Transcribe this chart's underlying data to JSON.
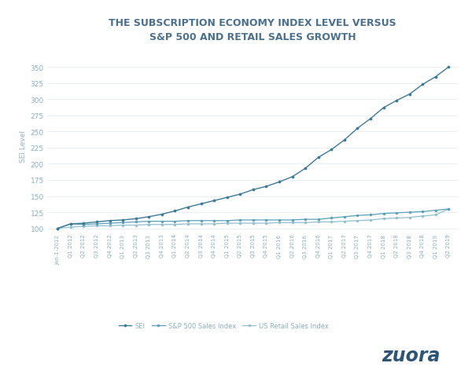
{
  "title": "THE SUBSCRIPTION ECONOMY INDEX LEVEL VERSUS\nS&P 500 AND RETAIL SALES GROWTH",
  "ylabel": "SEI Level",
  "background_color": "#ffffff",
  "title_color": "#4a7090",
  "axis_label_color": "#8ab0c0",
  "tick_color": "#8ab0c0",
  "grid_color": "#dde8ee",
  "ylim": [
    95,
    362
  ],
  "yticks": [
    100,
    125,
    150,
    175,
    200,
    225,
    250,
    275,
    300,
    325,
    350
  ],
  "line_color_sei": "#3d7a96",
  "line_color_sp500": "#5a9fb8",
  "line_color_retail": "#90bfd0",
  "zuora_color": "#2e5575",
  "x_labels": [
    "Jan-1-2012",
    "Q1 2012",
    "Q2 2012",
    "Q3 2012",
    "Q4 2012",
    "Q1 2013",
    "Q2 2013",
    "Q3 2013",
    "Q4 2013",
    "Q1 2014",
    "Q2 2014",
    "Q3 2014",
    "Q4 2014",
    "Q1 2015",
    "Q2 2015",
    "Q3 2015",
    "Q4 2015",
    "Q1 2016",
    "Q2 2016",
    "Q3 2016",
    "Q4 2016",
    "Q1 2017",
    "Q2 2017",
    "Q3 2017",
    "Q4 2017",
    "Q1 2018",
    "Q2 2018",
    "Q3 2018",
    "Q4 2018",
    "Q1 2019",
    "Q2 2019"
  ],
  "sei": [
    100,
    107,
    108,
    110,
    112,
    113,
    115,
    118,
    122,
    127,
    133,
    138,
    143,
    148,
    153,
    160,
    165,
    172,
    180,
    193,
    210,
    222,
    237,
    255,
    270,
    287,
    298,
    308,
    323,
    335,
    350
  ],
  "sp500": [
    100,
    107,
    106,
    107,
    108,
    109,
    110,
    111,
    111,
    111,
    112,
    112,
    112,
    112,
    113,
    113,
    113,
    113,
    113,
    114,
    114,
    116,
    118,
    120,
    121,
    123,
    124,
    125,
    126,
    128,
    130
  ],
  "retail": [
    100,
    102,
    103,
    104,
    104,
    105,
    105,
    106,
    106,
    106,
    107,
    107,
    107,
    108,
    108,
    108,
    108,
    109,
    109,
    109,
    110,
    110,
    111,
    112,
    113,
    115,
    116,
    117,
    119,
    121,
    130
  ],
  "legend_labels": [
    "SEI",
    "S&P 500 Sales Index",
    "US Retail Sales Index"
  ]
}
